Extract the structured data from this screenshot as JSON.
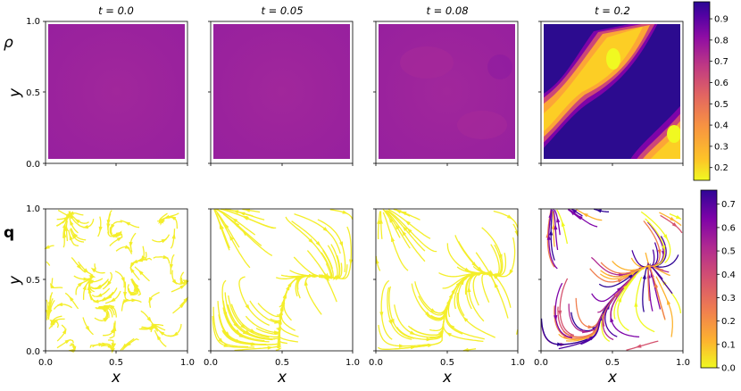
{
  "chart_data": {
    "type": "heatmap",
    "row_labels": [
      "ρ",
      "q"
    ],
    "time_titles": [
      "t = 0.0",
      "t = 0.05",
      "t = 0.08",
      "t = 0.2"
    ],
    "xlabel": "x",
    "ylabel": "y",
    "x_ticks": [
      "0.0",
      "0.5",
      "1.0"
    ],
    "y_ticks": [
      "0.0",
      "0.5",
      "1.0"
    ],
    "xlim": [
      0,
      1
    ],
    "ylim": [
      0,
      1
    ],
    "colorbars": [
      {
        "colormap": "plasma",
        "ticks": [
          "0.2",
          "0.3",
          "0.4",
          "0.5",
          "0.6",
          "0.7",
          "0.8",
          "0.9"
        ],
        "range": [
          0.14,
          0.98
        ]
      },
      {
        "colormap": "plasma_r",
        "ticks": [
          "0.0",
          "0.1",
          "0.2",
          "0.3",
          "0.4",
          "0.5",
          "0.6",
          "0.7"
        ],
        "range": [
          0,
          0.76
        ]
      }
    ],
    "density_panels": [
      {
        "time": 0.0,
        "pattern": "uniform",
        "value": 0.64
      },
      {
        "time": 0.05,
        "pattern": "uniform",
        "value": 0.64
      },
      {
        "time": 0.08,
        "pattern": "near-uniform",
        "value": 0.63
      },
      {
        "time": 0.2,
        "pattern": "diagonal bands",
        "min": 0.14,
        "max": 0.98
      }
    ],
    "momentum_panels": [
      {
        "time": 0.0,
        "pattern": "random streamlines",
        "color": "#f4ee2a"
      },
      {
        "time": 0.05,
        "pattern": "converging streamlines",
        "color": "#f4ee2a"
      },
      {
        "time": 0.08,
        "pattern": "converging streamlines",
        "color": "#f4ee2a"
      },
      {
        "time": 0.2,
        "pattern": "converging streamlines, magnitude coloured"
      }
    ],
    "colors": {
      "uniform_density": "#9c1f9e",
      "streamline_yellow": "#f4ee2a"
    }
  }
}
